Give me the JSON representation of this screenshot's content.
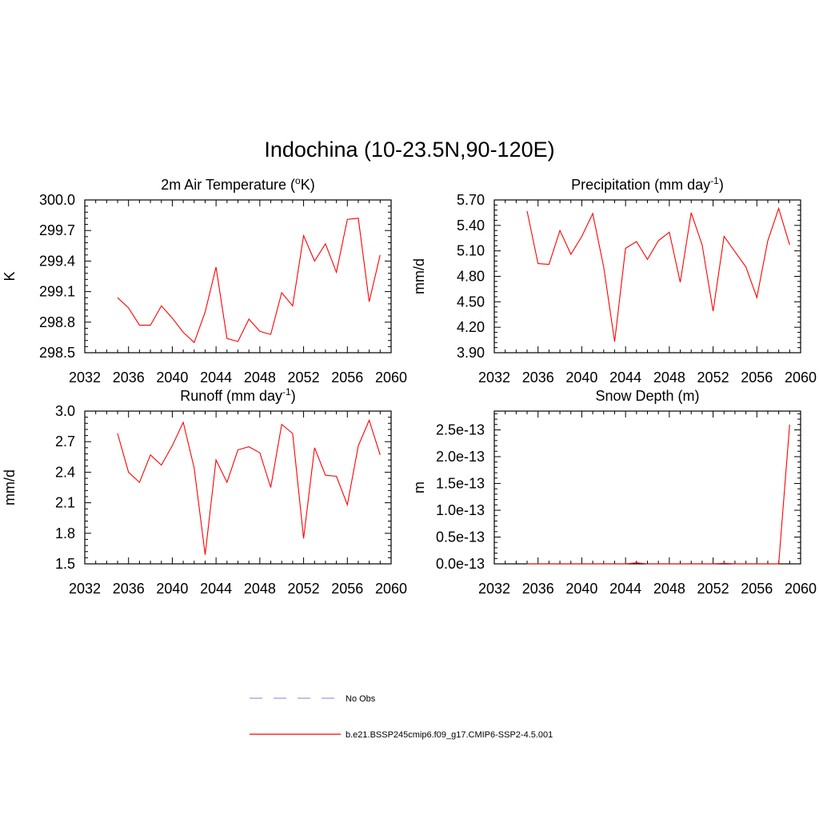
{
  "figure_title": "Indochina (10-23.5N,90-120E)",
  "legend": {
    "obs_label": "No Obs",
    "model_label": "b.e21.BSSP245cmip6.f09_g17.CMIP6-SSP2-4.5.001",
    "obs_color": "#9999ee",
    "model_color": "#ff0000"
  },
  "chart_data": [
    {
      "type": "line",
      "title_main": "2m Air Temperature (",
      "title_sup": "o",
      "title_tail": "K)",
      "ylabel": "K",
      "xlim": [
        2032,
        2060
      ],
      "ylim": [
        298.5,
        300.0
      ],
      "xticks": [
        "2032",
        "2036",
        "2040",
        "2044",
        "2048",
        "2052",
        "2056",
        "2060"
      ],
      "yticks": [
        "298.5",
        "298.8",
        "299.1",
        "299.4",
        "299.7",
        "300.0"
      ],
      "grid": false,
      "series": [
        {
          "color": "#ff0000",
          "x": [
            2035,
            2036,
            2037,
            2038,
            2039,
            2040,
            2041,
            2042,
            2043,
            2044,
            2045,
            2046,
            2047,
            2048,
            2049,
            2050,
            2051,
            2052,
            2053,
            2054,
            2055,
            2056,
            2057,
            2058,
            2059
          ],
          "values": [
            299.04,
            298.94,
            298.77,
            298.77,
            298.96,
            298.84,
            298.7,
            298.6,
            298.9,
            299.34,
            298.64,
            298.61,
            298.83,
            298.71,
            298.68,
            299.09,
            298.96,
            299.65,
            299.4,
            299.57,
            299.29,
            299.81,
            299.82,
            299.0,
            299.46
          ]
        }
      ]
    },
    {
      "type": "line",
      "title_main": "Precipitation (mm day",
      "title_sup": "-1",
      "title_tail": ")",
      "ylabel": "mm/d",
      "xlim": [
        2032,
        2060
      ],
      "ylim": [
        3.9,
        5.7
      ],
      "xticks": [
        "2032",
        "2036",
        "2040",
        "2044",
        "2048",
        "2052",
        "2056",
        "2060"
      ],
      "yticks": [
        "3.90",
        "4.20",
        "4.50",
        "4.80",
        "5.10",
        "5.40",
        "5.70"
      ],
      "grid": false,
      "series": [
        {
          "color": "#ff0000",
          "x": [
            2035,
            2036,
            2037,
            2038,
            2039,
            2040,
            2041,
            2042,
            2043,
            2044,
            2045,
            2046,
            2047,
            2048,
            2049,
            2050,
            2051,
            2052,
            2053,
            2054,
            2055,
            2056,
            2057,
            2058,
            2059
          ],
          "values": [
            5.57,
            4.95,
            4.94,
            5.34,
            5.06,
            5.27,
            5.54,
            4.91,
            4.03,
            5.13,
            5.21,
            5.0,
            5.22,
            5.32,
            4.73,
            5.55,
            5.17,
            4.39,
            5.27,
            5.09,
            4.91,
            4.55,
            5.22,
            5.6,
            5.17
          ]
        }
      ]
    },
    {
      "type": "line",
      "title_main": "Runoff (mm day",
      "title_sup": "-1",
      "title_tail": ")",
      "ylabel": "mm/d",
      "xlim": [
        2032,
        2060
      ],
      "ylim": [
        1.5,
        3.0
      ],
      "xticks": [
        "2032",
        "2036",
        "2040",
        "2044",
        "2048",
        "2052",
        "2056",
        "2060"
      ],
      "yticks": [
        "1.5",
        "1.8",
        "2.1",
        "2.4",
        "2.7",
        "3.0"
      ],
      "grid": false,
      "series": [
        {
          "color": "#ff0000",
          "x": [
            2035,
            2036,
            2037,
            2038,
            2039,
            2040,
            2041,
            2042,
            2043,
            2044,
            2045,
            2046,
            2047,
            2048,
            2049,
            2050,
            2051,
            2052,
            2053,
            2054,
            2055,
            2056,
            2057,
            2058,
            2059
          ],
          "values": [
            2.78,
            2.4,
            2.3,
            2.57,
            2.47,
            2.66,
            2.89,
            2.44,
            1.59,
            2.52,
            2.3,
            2.62,
            2.65,
            2.59,
            2.25,
            2.87,
            2.78,
            1.75,
            2.64,
            2.37,
            2.36,
            2.08,
            2.66,
            2.91,
            2.57
          ]
        }
      ]
    },
    {
      "type": "line",
      "title_main": "Snow Depth (m)",
      "title_sup": "",
      "title_tail": "",
      "ylabel": "m",
      "xlim": [
        2032,
        2060
      ],
      "ylim": [
        0,
        2.85e-13
      ],
      "xticks": [
        "2032",
        "2036",
        "2040",
        "2044",
        "2048",
        "2052",
        "2056",
        "2060"
      ],
      "yticks": [
        "0.0e-13",
        "0.5e-13",
        "1.0e-13",
        "1.5e-13",
        "2.0e-13",
        "2.5e-13"
      ],
      "yticks_values": [
        0,
        5e-14,
        1e-13,
        1.5e-13,
        2e-13,
        2.5e-13
      ],
      "grid": false,
      "series": [
        {
          "color": "#ff0000",
          "x": [
            2035,
            2036,
            2037,
            2038,
            2039,
            2040,
            2041,
            2042,
            2043,
            2044,
            2045,
            2046,
            2047,
            2048,
            2049,
            2050,
            2051,
            2052,
            2053,
            2054,
            2055,
            2056,
            2057,
            2058,
            2059
          ],
          "values": [
            0,
            0,
            0,
            0,
            0,
            0,
            0,
            0,
            0,
            0,
            2e-15,
            0,
            0,
            0,
            0,
            0,
            0,
            0,
            1e-15,
            0,
            0,
            0,
            0,
            0,
            2.6e-13
          ]
        }
      ]
    }
  ]
}
